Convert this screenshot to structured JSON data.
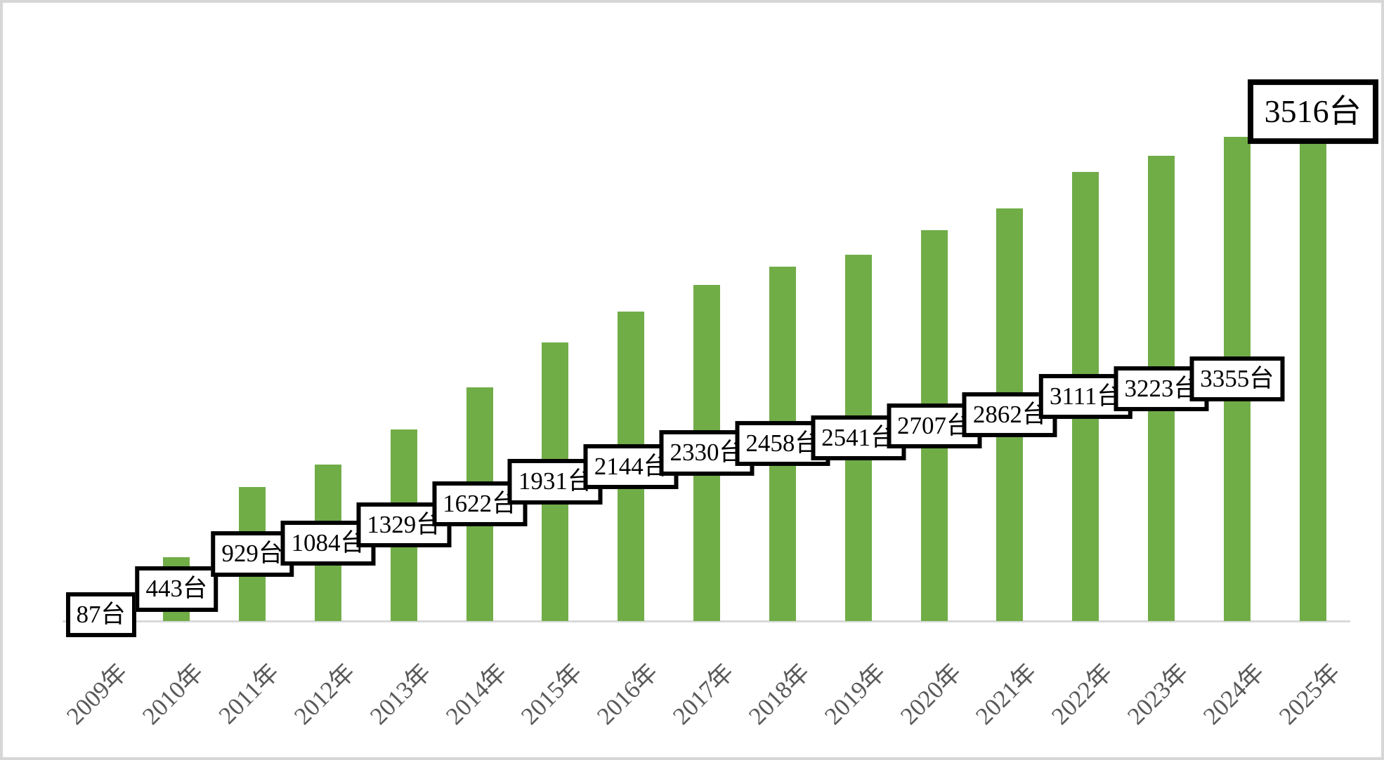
{
  "chart_data": {
    "type": "bar",
    "title": "",
    "categories": [
      "2009年",
      "2010年",
      "2011年",
      "2012年",
      "2013年",
      "2014年",
      "2015年",
      "2016年",
      "2017年",
      "2018年",
      "2019年",
      "2020年",
      "2021年",
      "2022年",
      "2023年",
      "2024年",
      "2025年"
    ],
    "values": [
      87,
      443,
      929,
      1084,
      1329,
      1622,
      1931,
      2144,
      2330,
      2458,
      2541,
      2707,
      2862,
      3111,
      3223,
      3355,
      3516
    ],
    "data_labels": [
      "87台",
      "443台",
      "929台",
      "1084台",
      "1329台",
      "1622台",
      "1931台",
      "2144台",
      "2330台",
      "2458台",
      "2541台",
      "2707台",
      "2862台",
      "3111台",
      "3223台",
      "3355台",
      "3516台"
    ],
    "unit": "台",
    "xlabel": "",
    "ylabel": "",
    "ylim": [
      0,
      3600
    ],
    "grid": false,
    "legend_position": "none",
    "colors": {
      "bar": "#70AD47",
      "axis_line": "#D9D9D9",
      "tick_label": "#595959",
      "data_label_text": "#000000",
      "data_label_bg": "#FFFFFF",
      "data_label_border": "#000000",
      "canvas_border": "#D7D7D7",
      "background": "#FFFFFF"
    }
  }
}
